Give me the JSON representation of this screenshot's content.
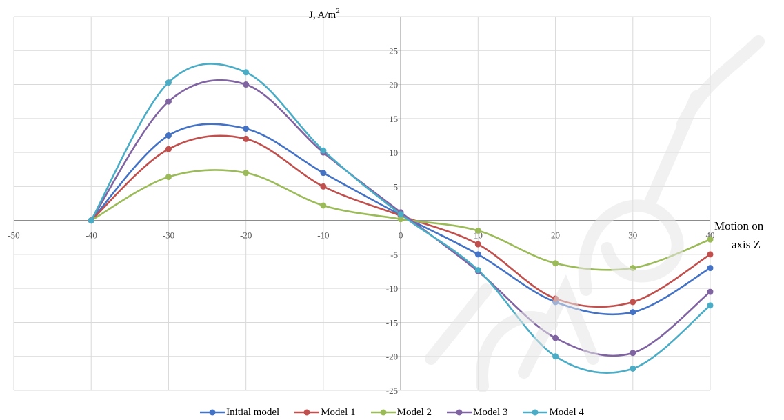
{
  "chart_data": {
    "type": "line",
    "ylabel": "J, A/m",
    "ylabel_sup": "2",
    "xlabel_line1": "Motion on",
    "xlabel_line2": "axis Z",
    "xlim": [
      -50,
      40
    ],
    "ylim": [
      -25,
      30
    ],
    "xticks": [
      -50,
      -40,
      -30,
      -20,
      -10,
      0,
      10,
      20,
      30,
      40
    ],
    "yticks": [
      -25,
      -20,
      -15,
      -10,
      -5,
      5,
      10,
      15,
      20,
      25
    ],
    "grid": true,
    "legend_position": "bottom",
    "x": [
      -40,
      -30,
      -20,
      -10,
      0,
      10,
      20,
      30,
      40
    ],
    "series": [
      {
        "name": "Initial model",
        "color": "#4472c4",
        "values": [
          0,
          12.5,
          13.5,
          7,
          0.8,
          -5,
          -12,
          -13.5,
          -7
        ]
      },
      {
        "name": "Model 1",
        "color": "#c0504d",
        "values": [
          0,
          10.5,
          12,
          5,
          0.7,
          -3.5,
          -11.5,
          -12,
          -5
        ]
      },
      {
        "name": "Model 2",
        "color": "#9bbb59",
        "values": [
          0,
          6.4,
          7,
          2.2,
          0.2,
          -1.5,
          -6.3,
          -7,
          -2.8
        ]
      },
      {
        "name": "Model 3",
        "color": "#8064a2",
        "values": [
          0,
          17.5,
          20,
          10,
          1.2,
          -7.5,
          -17.3,
          -19.5,
          -10.5
        ]
      },
      {
        "name": "Model 4",
        "color": "#4bacc6",
        "values": [
          0,
          20.3,
          21.8,
          10.3,
          0.9,
          -7.3,
          -20,
          -21.8,
          -12.5
        ]
      }
    ]
  }
}
